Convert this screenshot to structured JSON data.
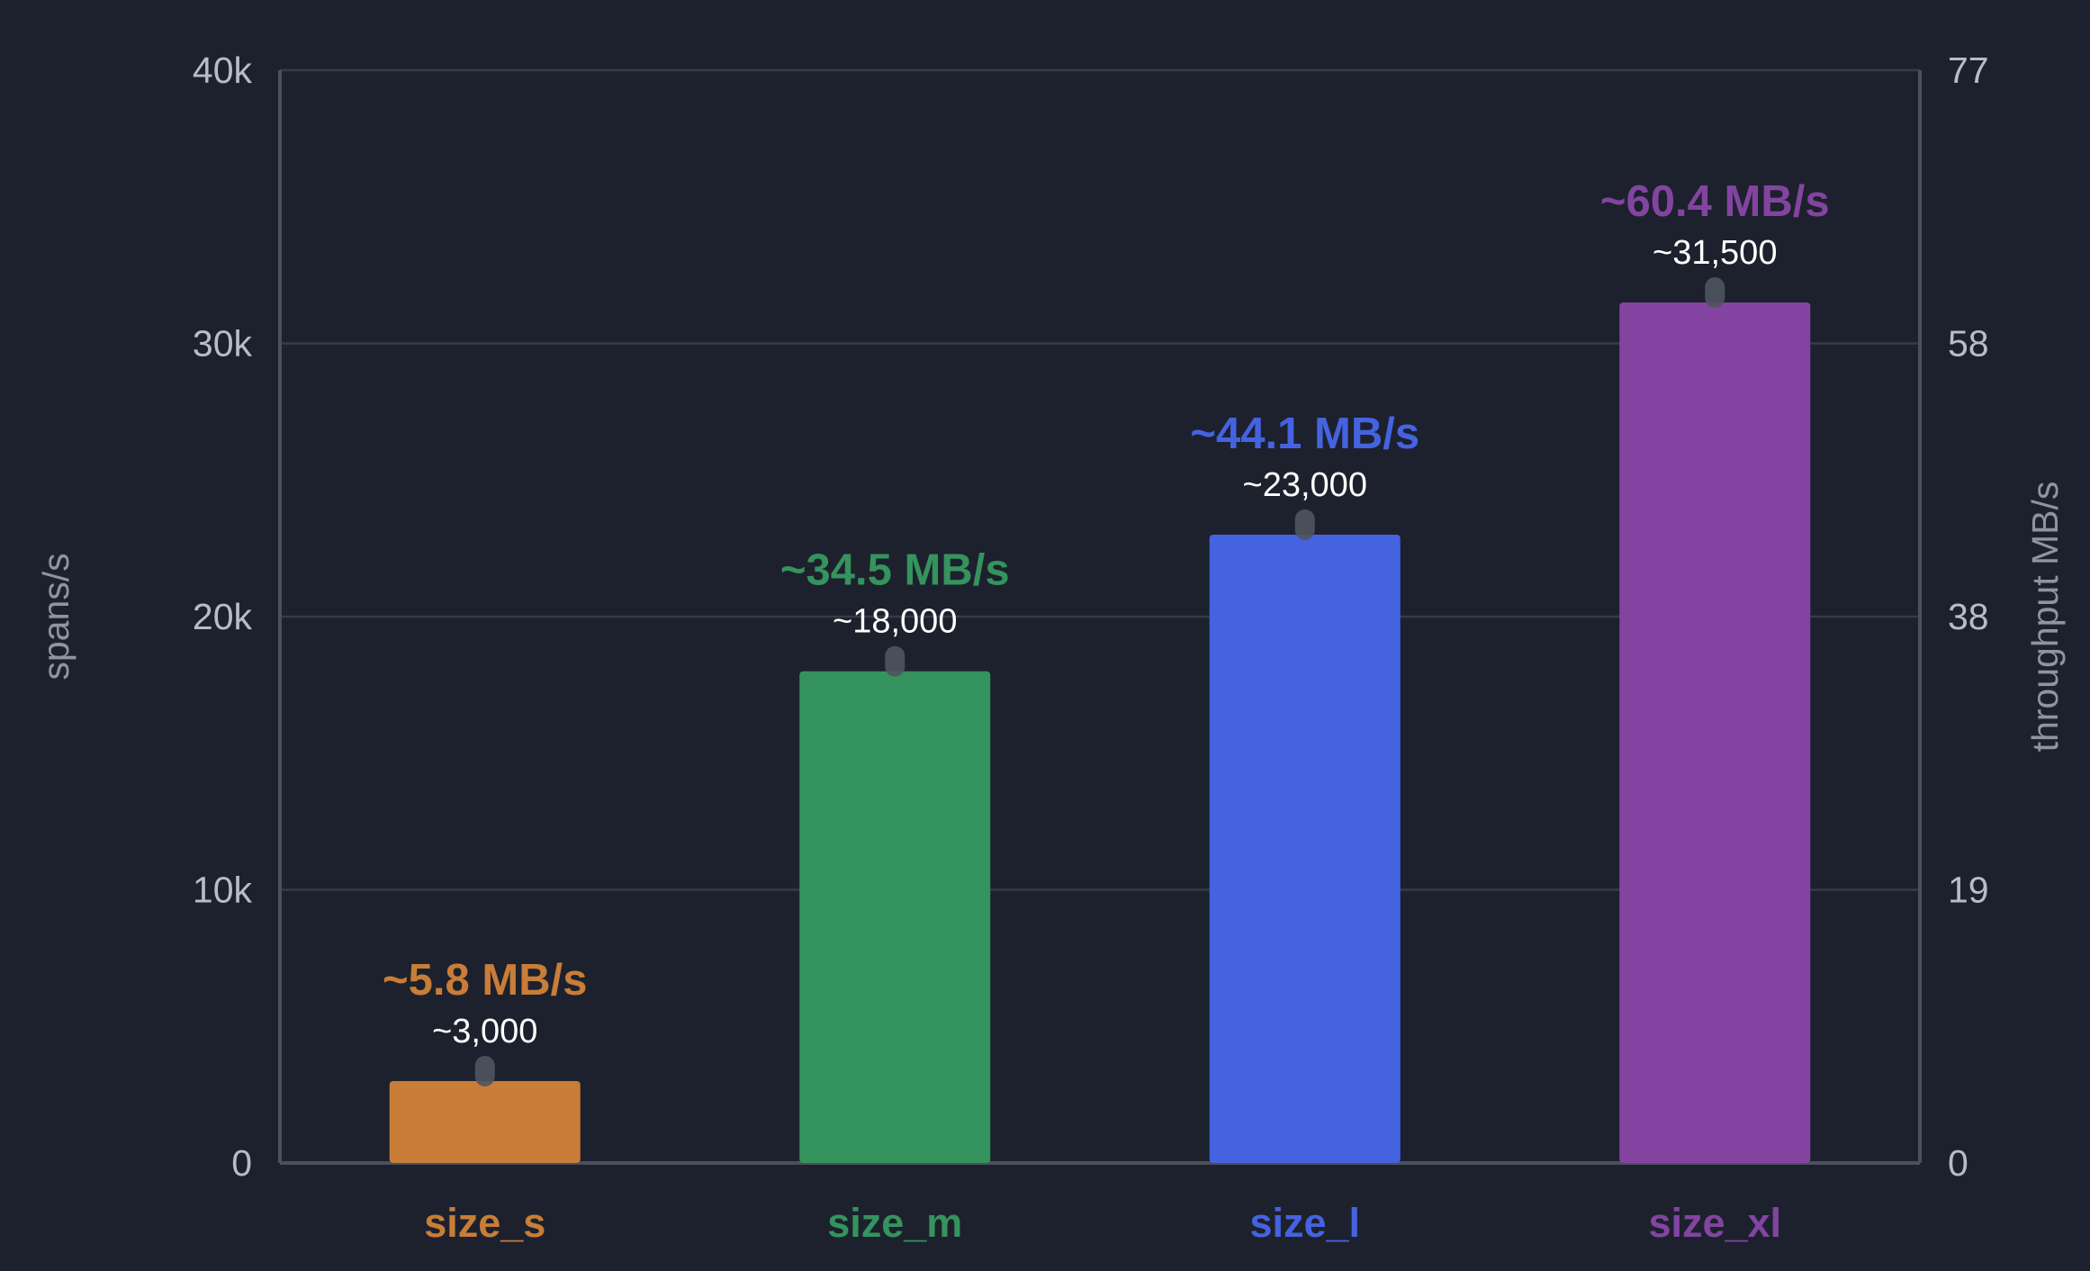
{
  "chart_data": {
    "type": "bar",
    "categories": [
      "size_s",
      "size_m",
      "size_l",
      "size_xl"
    ],
    "values": [
      3000,
      18000,
      23000,
      31500
    ],
    "value_labels": [
      "~3,000",
      "~18,000",
      "~23,000",
      "~31,500"
    ],
    "throughput_labels": [
      "~5.8 MB/s",
      "~34.5 MB/s",
      "~44.1 MB/s",
      "~60.4 MB/s"
    ],
    "throughput_mbs": [
      5.8,
      34.5,
      44.1,
      60.4
    ],
    "colors": [
      "#c87d38",
      "#35935d",
      "#4563e0",
      "#8344a1"
    ],
    "title": "",
    "ylabel": "spans/s",
    "y2label": "throughput MB/s",
    "ylim": [
      0,
      40000
    ],
    "y_ticks": [
      0,
      10000,
      20000,
      30000,
      40000
    ],
    "y_tick_labels": [
      "0",
      "10k",
      "20k",
      "30k",
      "40k"
    ],
    "y2_tick_labels": [
      "0",
      "19",
      "38",
      "58",
      "77"
    ],
    "grid": true,
    "legend": "none",
    "background": "#1d212d",
    "grid_color": "#363b48",
    "axis_color": "#4a505d"
  }
}
